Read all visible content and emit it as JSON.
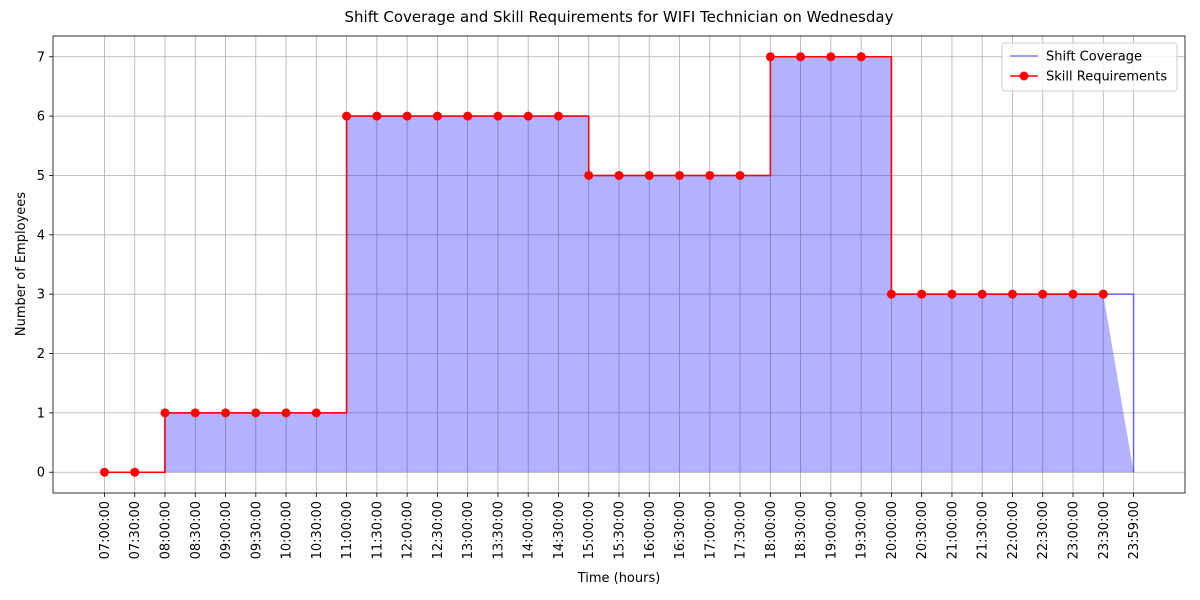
{
  "chart_data": {
    "type": "line",
    "title": "Shift Coverage and Skill Requirements for WIFI Technician on Wednesday",
    "x_label": "Time (hours)",
    "y_label": "Number of Employees",
    "categories": [
      "07:00:00",
      "07:30:00",
      "08:00:00",
      "08:30:00",
      "09:00:00",
      "09:30:00",
      "10:00:00",
      "10:30:00",
      "11:00:00",
      "11:30:00",
      "12:00:00",
      "12:30:00",
      "13:00:00",
      "13:30:00",
      "14:00:00",
      "14:30:00",
      "15:00:00",
      "15:30:00",
      "16:00:00",
      "16:30:00",
      "17:00:00",
      "17:30:00",
      "18:00:00",
      "18:30:00",
      "19:00:00",
      "19:30:00",
      "20:00:00",
      "20:30:00",
      "21:00:00",
      "21:30:00",
      "22:00:00",
      "22:30:00",
      "23:00:00",
      "23:30:00",
      "23:59:00"
    ],
    "series": [
      {
        "name": "Shift Coverage",
        "color": "#0000ff",
        "values": [
          0,
          0,
          1,
          1,
          1,
          1,
          1,
          1,
          6,
          6,
          6,
          6,
          6,
          6,
          6,
          6,
          5,
          5,
          5,
          5,
          5,
          5,
          7,
          7,
          7,
          7,
          3,
          3,
          3,
          3,
          3,
          3,
          3,
          3,
          0
        ]
      },
      {
        "name": "Skill Requirements",
        "color": "#ff0000",
        "values": [
          0,
          0,
          1,
          1,
          1,
          1,
          1,
          1,
          6,
          6,
          6,
          6,
          6,
          6,
          6,
          6,
          5,
          5,
          5,
          5,
          5,
          5,
          7,
          7,
          7,
          7,
          3,
          3,
          3,
          3,
          3,
          3,
          3,
          3,
          null
        ]
      }
    ],
    "ylim": [
      -0.35,
      7.35
    ],
    "yticks": [
      0,
      1,
      2,
      3,
      4,
      5,
      6,
      7
    ],
    "grid": true,
    "legend": "upper right"
  }
}
